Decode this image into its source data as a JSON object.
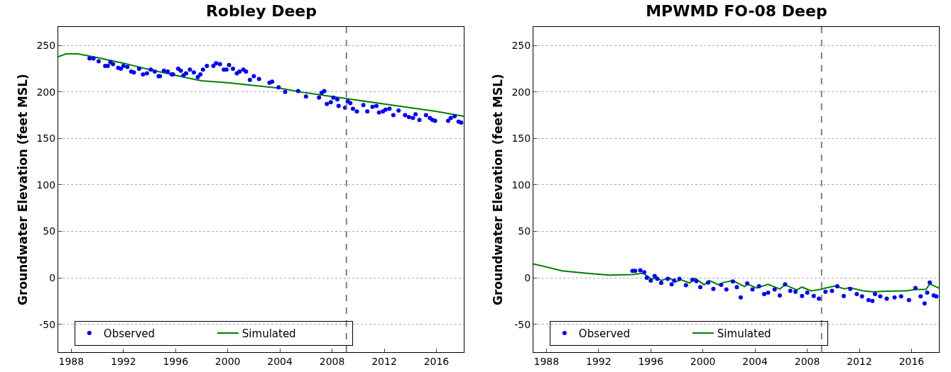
{
  "chart_data": [
    {
      "type": "line",
      "title": "Robley Deep",
      "ylabel": "Groundwater Elevation (feet MSL)",
      "xlim": [
        1987,
        2018.1
      ],
      "xticks": [
        1988,
        1992,
        1996,
        2000,
        2004,
        2008,
        2012,
        2016
      ],
      "ylim": [
        -80,
        270
      ],
      "yticks": [
        -50,
        0,
        50,
        100,
        150,
        200,
        250
      ],
      "grid": "y",
      "legend": "bottom left",
      "ref_lines": [
        {
          "axis": "x",
          "value": 2009.1,
          "color": "#808080",
          "line_style": "dashed"
        }
      ],
      "series": [
        {
          "name": "Observed",
          "type": "scatter",
          "marker": "circle",
          "color": "#0000ff",
          "x": [
            1989.4,
            1989.7,
            1990.1,
            1990.6,
            1990.8,
            1991.0,
            1991.2,
            1991.6,
            1991.8,
            1992.0,
            1992.3,
            1992.6,
            1992.8,
            1993.2,
            1993.5,
            1993.8,
            1994.1,
            1994.4,
            1994.7,
            1994.8,
            1995.1,
            1995.4,
            1995.7,
            1995.8,
            1996.2,
            1996.4,
            1996.6,
            1996.8,
            1997.1,
            1997.4,
            1997.7,
            1997.9,
            1998.1,
            1998.4,
            1998.9,
            1999.1,
            1999.4,
            1999.7,
            1999.9,
            2000.1,
            2000.4,
            2000.7,
            2000.9,
            2001.2,
            2001.4,
            2001.7,
            2002.0,
            2002.4,
            2003.2,
            2003.4,
            2003.9,
            2004.4,
            2005.4,
            2006.0,
            2007.0,
            2007.2,
            2007.4,
            2007.6,
            2007.9,
            2008.1,
            2008.4,
            2008.5,
            2009.0,
            2009.2,
            2009.4,
            2009.6,
            2009.9,
            2010.4,
            2010.7,
            2011.1,
            2011.4,
            2011.6,
            2011.9,
            2012.1,
            2012.4,
            2012.7,
            2013.1,
            2013.6,
            2013.9,
            2014.2,
            2014.4,
            2014.7,
            2015.2,
            2015.5,
            2015.7,
            2015.9,
            2016.9,
            2017.1,
            2017.4,
            2017.7,
            2017.9
          ],
          "values": [
            236,
            236,
            233,
            228,
            228,
            232,
            230,
            226,
            225,
            228,
            227,
            222,
            221,
            225,
            219,
            220,
            224,
            222,
            217,
            217,
            223,
            222,
            219,
            219,
            225,
            223,
            218,
            220,
            224,
            221,
            216,
            219,
            224,
            228,
            228,
            231,
            230,
            224,
            224,
            229,
            225,
            220,
            222,
            224,
            222,
            213,
            217,
            214,
            210,
            211,
            205,
            200,
            201,
            195,
            194,
            199,
            201,
            187,
            189,
            194,
            192,
            185,
            183,
            190,
            188,
            182,
            179,
            186,
            179,
            184,
            185,
            178,
            179,
            181,
            182,
            175,
            180,
            175,
            173,
            172,
            176,
            170,
            175,
            172,
            170,
            169,
            169,
            172,
            174,
            168,
            167
          ]
        },
        {
          "name": "Simulated",
          "type": "line",
          "color": "#008000",
          "x": [
            1987.0,
            1987.6,
            1988.5,
            1990,
            1992,
            1994,
            1996,
            1997.3,
            1998,
            2000,
            2002.7,
            2004,
            2006,
            2008,
            2010,
            2012,
            2014,
            2016,
            2018.1
          ],
          "values": [
            238,
            241,
            241,
            237,
            231,
            224,
            218,
            214,
            212,
            210,
            206,
            204,
            199,
            195,
            191,
            187,
            183,
            179,
            174
          ]
        }
      ]
    },
    {
      "type": "line",
      "title": "MPWMD FO-08 Deep",
      "ylabel": "Groundwater Elevation (feet MSL)",
      "xlim": [
        1987,
        2018.1
      ],
      "xticks": [
        1988,
        1992,
        1996,
        2000,
        2004,
        2008,
        2012,
        2016
      ],
      "ylim": [
        -80,
        270
      ],
      "yticks": [
        -50,
        0,
        50,
        100,
        150,
        200,
        250
      ],
      "grid": "y",
      "legend": "bottom left",
      "ref_lines": [
        {
          "axis": "x",
          "value": 2009.1,
          "color": "#808080",
          "line_style": "dashed"
        }
      ],
      "series": [
        {
          "name": "Observed",
          "type": "scatter",
          "marker": "circle",
          "color": "#0000ff",
          "x": [
            1994.6,
            1994.8,
            1995.2,
            1995.5,
            1995.7,
            1996.0,
            1996.3,
            1996.5,
            1996.8,
            1997.3,
            1997.6,
            1997.8,
            1998.2,
            1998.7,
            1999.2,
            1999.5,
            1999.8,
            2000.4,
            2000.8,
            2001.4,
            2001.8,
            2002.3,
            2002.6,
            2002.9,
            2003.4,
            2003.8,
            2004.3,
            2004.7,
            2005.0,
            2005.5,
            2005.9,
            2006.3,
            2006.7,
            2007.1,
            2007.6,
            2008.0,
            2008.5,
            2008.9,
            2009.4,
            2009.9,
            2010.3,
            2010.8,
            2011.3,
            2011.8,
            2012.2,
            2012.7,
            2013.0,
            2013.2,
            2013.6,
            2014.1,
            2014.7,
            2015.2,
            2015.8,
            2016.3,
            2016.7,
            2017.0,
            2017.2,
            2017.4,
            2017.7,
            2017.9
          ],
          "values": [
            7.5,
            7.5,
            8,
            6,
            0,
            -3,
            2,
            -1,
            -5.5,
            -1,
            -7,
            -3,
            -1,
            -8,
            -2,
            -3.5,
            -10,
            -5,
            -12,
            -7.5,
            -12.5,
            -4,
            -10,
            -21,
            -6,
            -12.5,
            -9,
            -17.5,
            -16,
            -12.5,
            -19,
            -7,
            -14,
            -15,
            -19.5,
            -16,
            -19.5,
            -22.5,
            -15,
            -14,
            -9,
            -19.5,
            -12,
            -17.5,
            -20,
            -24,
            -25,
            -17.5,
            -20,
            -22.5,
            -21,
            -20,
            -24,
            -11,
            -20,
            -27.5,
            -16,
            -5,
            -19,
            -20
          ]
        },
        {
          "name": "Simulated",
          "type": "line",
          "color": "#008000",
          "x": [
            1987.0,
            1989.2,
            1991.0,
            1992.8,
            1994.6,
            1995.4,
            1996.1,
            1996.5,
            1996.8,
            1997.4,
            1997.9,
            1998.3,
            1999.0,
            1999.4,
            2000.1,
            2000.5,
            2001.2,
            2001.6,
            2002.3,
            2003.2,
            2003.4,
            2004.1,
            2005.0,
            2005.9,
            2006.3,
            2007.2,
            2007.6,
            2008.3,
            2009.0,
            2009.4,
            2010.1,
            2010.9,
            2011.2,
            2012.3,
            2013.0,
            2014.1,
            2015.6,
            2016.3,
            2017.1,
            2017.4,
            2018.1
          ],
          "values": [
            15,
            7.5,
            5,
            3,
            3.5,
            5,
            -1.5,
            0.5,
            -3,
            0,
            -4.5,
            -2,
            -5.5,
            -0.5,
            -7.5,
            -3,
            -7.5,
            -5,
            -3,
            -9.5,
            -6.5,
            -11,
            -7,
            -12,
            -7.5,
            -13,
            -10,
            -14,
            -12.5,
            -11,
            -9,
            -12,
            -10.5,
            -14,
            -15,
            -14.5,
            -14,
            -12.5,
            -12.5,
            -6.5,
            -11
          ]
        }
      ]
    }
  ]
}
